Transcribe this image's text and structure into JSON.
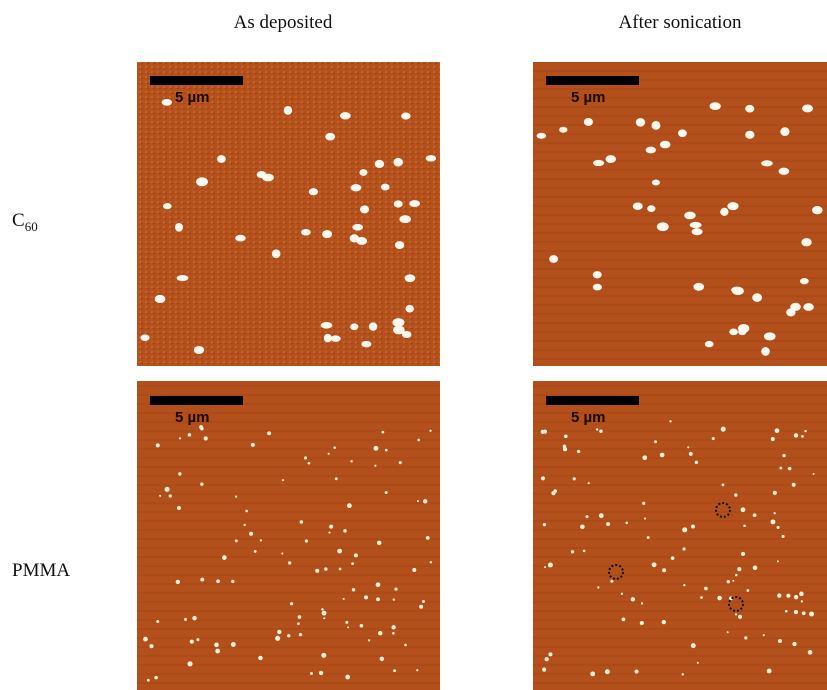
{
  "columns": [
    "As deposited",
    "After sonication"
  ],
  "rows": [
    {
      "label": "C",
      "subscript": "60"
    },
    {
      "label": "PMMA"
    }
  ],
  "panels": [
    {
      "scale_bar": "5 µm"
    },
    {
      "scale_bar": "5 µm"
    },
    {
      "scale_bar": "5 µm"
    },
    {
      "scale_bar": "5 µm"
    }
  ]
}
